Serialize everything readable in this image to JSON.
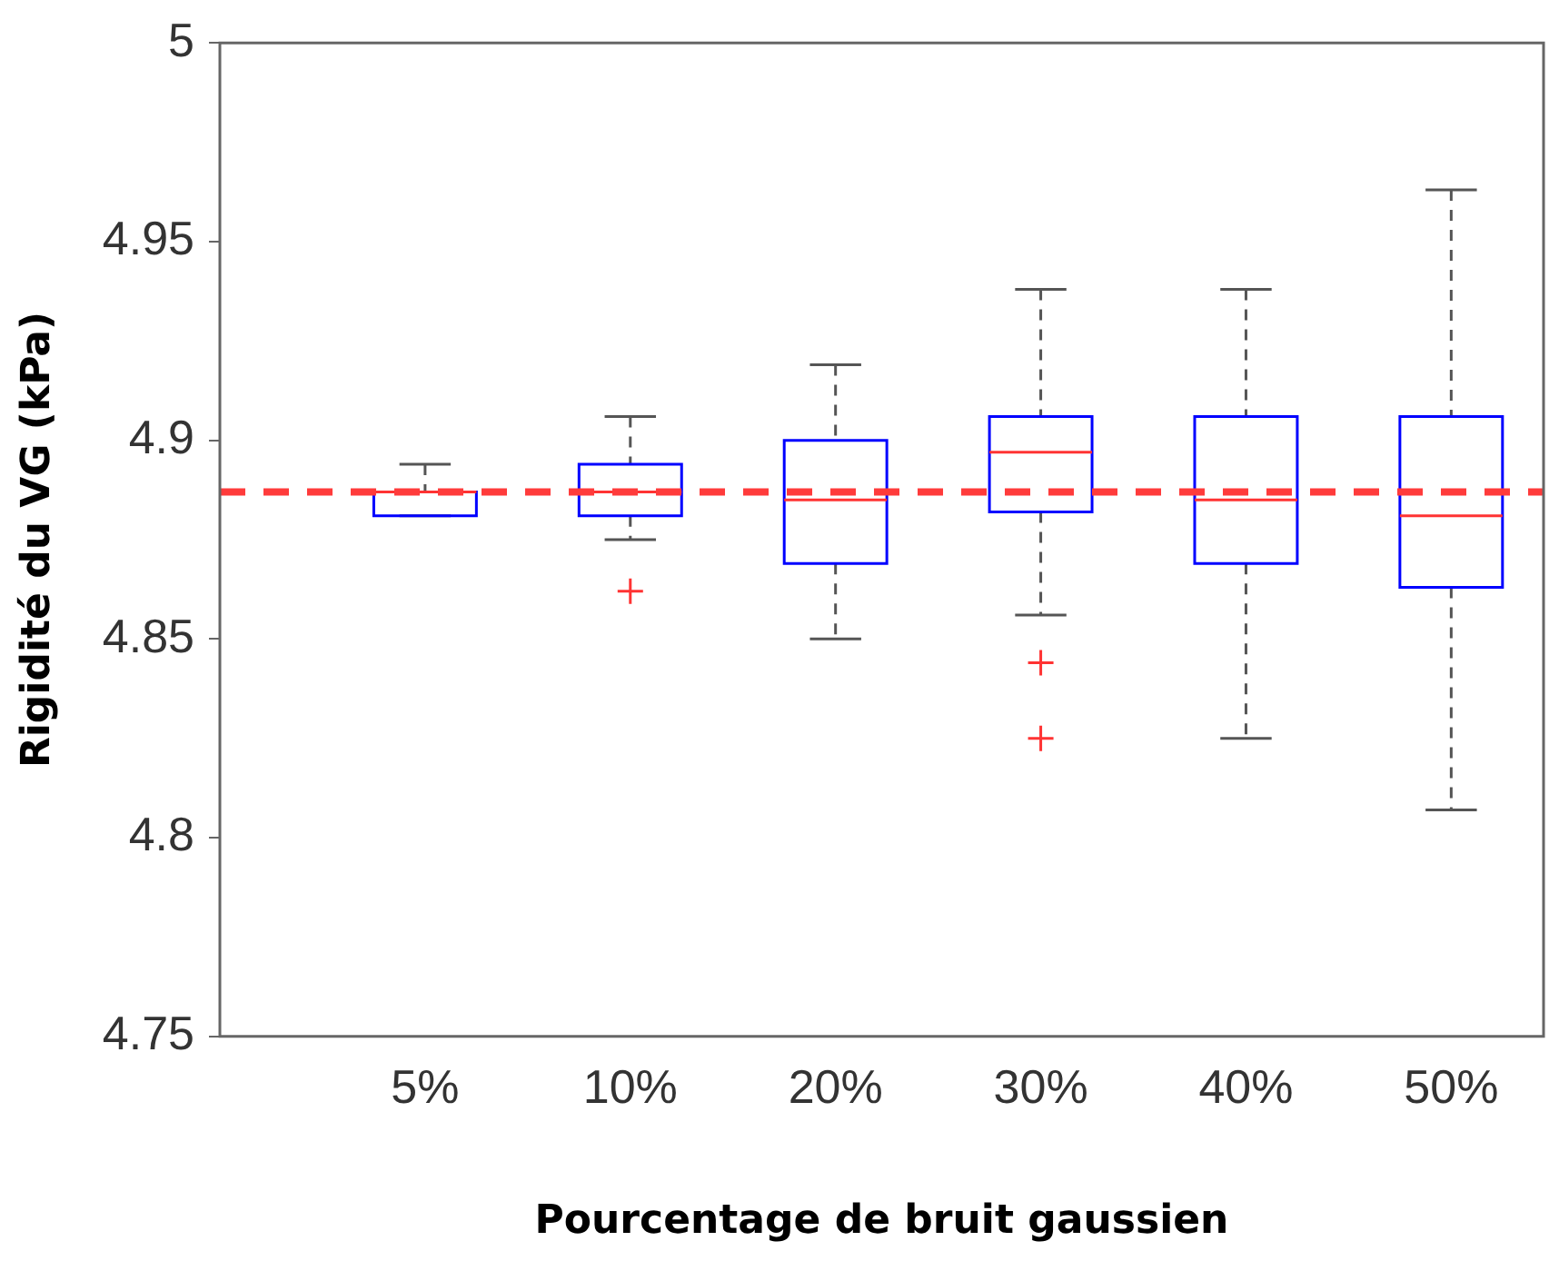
{
  "chart_data": {
    "type": "box",
    "xlabel": "Pourcentage de bruit gaussien",
    "ylabel": "Rigidité du VG (kPa)",
    "categories": [
      "5%",
      "10%",
      "20%",
      "30%",
      "40%",
      "50%"
    ],
    "color": "#0000ff",
    "boxes": [
      {
        "low": 4.881,
        "q1": 4.881,
        "median": 4.887,
        "q3": 4.887,
        "high": 4.894
      },
      {
        "low": 4.875,
        "q1": 4.881,
        "median": 4.887,
        "q3": 4.894,
        "high": 4.906,
        "outliers": [
          4.862
        ]
      },
      {
        "low": 4.85,
        "q1": 4.869,
        "median": 4.885,
        "q3": 4.9,
        "high": 4.919
      },
      {
        "low": 4.856,
        "q1": 4.882,
        "median": 4.897,
        "q3": 4.906,
        "high": 4.938,
        "outliers": [
          4.844,
          4.825
        ]
      },
      {
        "low": 4.825,
        "q1": 4.869,
        "median": 4.885,
        "q3": 4.906,
        "high": 4.938
      },
      {
        "low": 4.807,
        "q1": 4.863,
        "median": 4.881,
        "q3": 4.906,
        "high": 4.963
      }
    ],
    "ylim": [
      4.75,
      5
    ],
    "yticks": [
      4.75,
      4.8,
      4.85,
      4.9,
      4.95,
      5
    ],
    "ref_lines": [
      {
        "axis": "y",
        "value": 4.887,
        "color": "#ff3b3b",
        "line_style": "dashed"
      }
    ],
    "grid": false,
    "legend": false
  }
}
